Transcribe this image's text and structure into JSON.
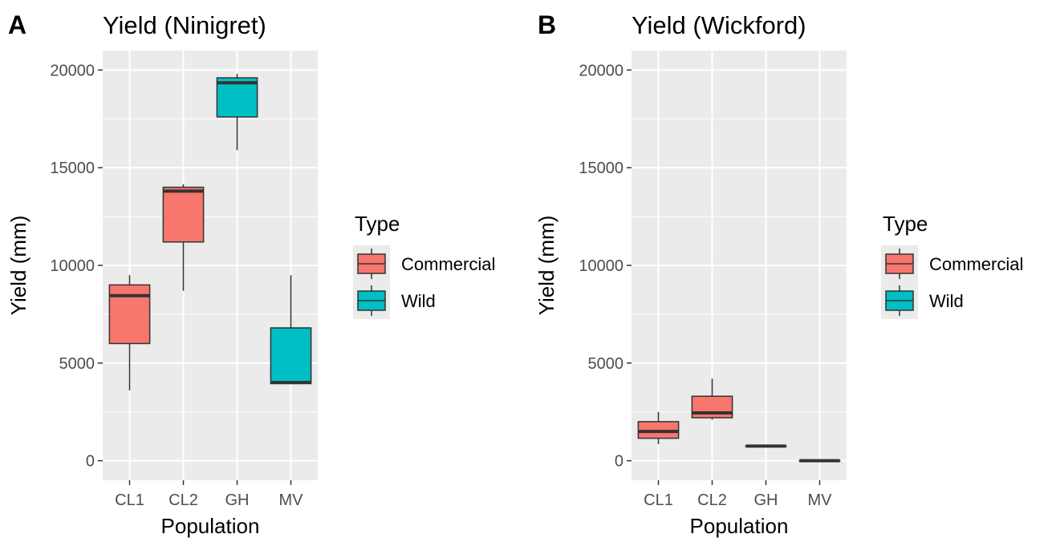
{
  "colors": {
    "panel_bg": "#EBEBEB",
    "grid": "#FFFFFF",
    "tick_text": "#4D4D4D",
    "box_outline": "#333333",
    "commercial": "#F8766D",
    "wild": "#00BFC4"
  },
  "chart_data": [
    {
      "type": "boxplot",
      "tag": "A",
      "title": "Yield (Ninigret)",
      "xlabel": "Population",
      "ylabel": "Yield (mm)",
      "ylim": [
        -1000,
        21000
      ],
      "y_ticks": [
        0,
        5000,
        10000,
        15000,
        20000
      ],
      "y_tick_labels": [
        "0",
        "5000",
        "10000",
        "15000",
        "20000"
      ],
      "grid": true,
      "legend": {
        "title": "Type",
        "placement": "right",
        "items": [
          {
            "label": "Commercial",
            "color_key": "commercial"
          },
          {
            "label": "Wild",
            "color_key": "wild"
          }
        ]
      },
      "categories": [
        "CL1",
        "CL2",
        "GH",
        "MV"
      ],
      "boxes": [
        {
          "category": "CL1",
          "type": "Commercial",
          "min": 3600,
          "q1": 6000,
          "median": 8450,
          "q3": 9000,
          "max": 9500
        },
        {
          "category": "CL2",
          "type": "Commercial",
          "min": 8700,
          "q1": 11200,
          "median": 13800,
          "q3": 14000,
          "max": 14150
        },
        {
          "category": "GH",
          "type": "Wild",
          "min": 15900,
          "q1": 17600,
          "median": 19350,
          "q3": 19600,
          "max": 19800
        },
        {
          "category": "MV",
          "type": "Wild",
          "min": 3950,
          "q1": 3950,
          "median": 4000,
          "q3": 6800,
          "max": 9500
        }
      ]
    },
    {
      "type": "boxplot",
      "tag": "B",
      "title": "Yield (Wickford)",
      "xlabel": "Population",
      "ylabel": "Yield (mm)",
      "ylim": [
        -1000,
        21000
      ],
      "y_ticks": [
        0,
        5000,
        10000,
        15000,
        20000
      ],
      "y_tick_labels": [
        "0",
        "5000",
        "10000",
        "15000",
        "20000"
      ],
      "grid": true,
      "legend": {
        "title": "Type",
        "placement": "right",
        "items": [
          {
            "label": "Commercial",
            "color_key": "commercial"
          },
          {
            "label": "Wild",
            "color_key": "wild"
          }
        ]
      },
      "categories": [
        "CL1",
        "CL2",
        "GH",
        "MV"
      ],
      "boxes": [
        {
          "category": "CL1",
          "type": "Commercial",
          "min": 850,
          "q1": 1150,
          "median": 1500,
          "q3": 2000,
          "max": 2500
        },
        {
          "category": "CL2",
          "type": "Commercial",
          "min": 2100,
          "q1": 2200,
          "median": 2450,
          "q3": 3300,
          "max": 4200
        },
        {
          "category": "GH",
          "type": "Wild",
          "min": 750,
          "q1": 750,
          "median": 750,
          "q3": 750,
          "max": 750
        },
        {
          "category": "MV",
          "type": "Wild",
          "min": 0,
          "q1": 0,
          "median": 0,
          "q3": 0,
          "max": 0
        }
      ]
    }
  ]
}
